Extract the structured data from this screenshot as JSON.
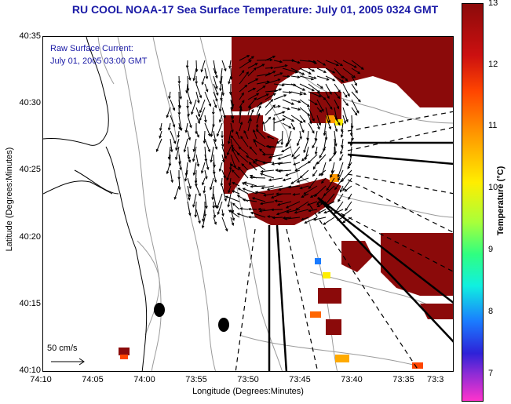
{
  "title": "RU COOL  NOAA-17  Sea Surface Temperature:  July 01, 2005 0324 GMT",
  "legend": {
    "line1": "Raw Surface Current:",
    "line2": "July 01, 2005 03:00 GMT"
  },
  "scale": {
    "label": "50 cm/s"
  },
  "y_axis": {
    "title": "Latitude (Degrees:Minutes)",
    "ticks": [
      "40:35",
      "40:30",
      "40:25",
      "40:20",
      "40:15",
      "40:10"
    ]
  },
  "x_axis": {
    "title": "Longitude (Degrees:Minutes)",
    "ticks": [
      "74:10",
      "74:05",
      "74:00",
      "73:55",
      "73:50",
      "73:45",
      "73:40",
      "73:35",
      "73:3"
    ]
  },
  "colorbar": {
    "title": "Temperature (°C)",
    "ticks": [
      "13",
      "12",
      "11",
      "10",
      "9",
      "8",
      "7"
    ],
    "range": [
      6.5,
      13
    ]
  },
  "colors": {
    "title": "#1a1aa6",
    "sst_warm": "#8b0a0a"
  }
}
